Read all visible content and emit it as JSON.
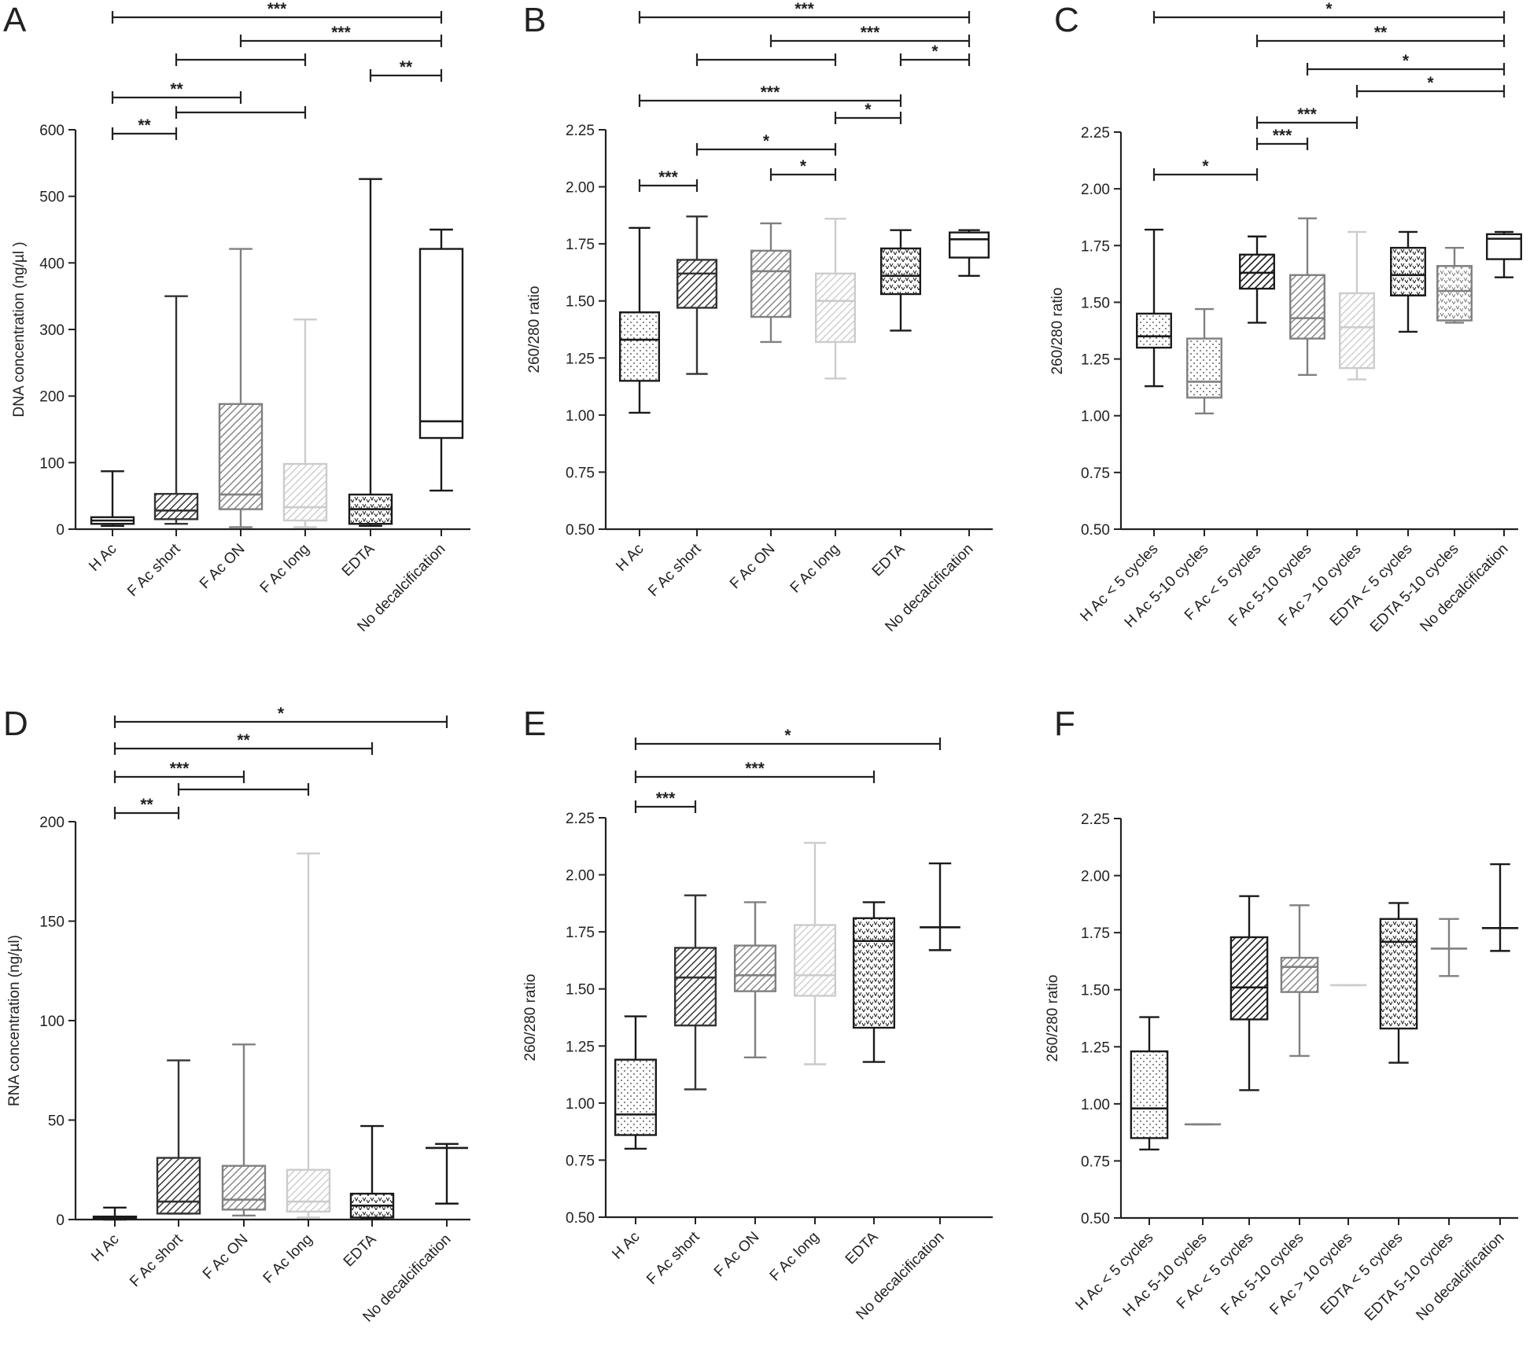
{
  "colors": {
    "black": "#1a1a1a",
    "dark": "#333333",
    "mid": "#808080",
    "light": "#cccccc",
    "axis": "#222222"
  },
  "chart_data": [
    {
      "panel": "A",
      "type": "box",
      "ylabel": "DNA concentration  (ng/µl )",
      "ylim": [
        0,
        600
      ],
      "yticks": [
        "0",
        "100",
        "200",
        "300",
        "400",
        "500",
        "600"
      ],
      "categories": [
        "H Ac",
        "F Ac short",
        "F Ac ON",
        "F Ac long",
        "EDTA",
        "No decalcification"
      ],
      "boxes": [
        {
          "min": 5,
          "q1": 8,
          "median": 13,
          "q3": 18,
          "max": 87,
          "color": "black",
          "pattern": "dots"
        },
        {
          "min": 8,
          "q1": 15,
          "median": 28,
          "q3": 53,
          "max": 350,
          "color": "dark",
          "pattern": "hatch"
        },
        {
          "min": 3,
          "q1": 30,
          "median": 52,
          "q3": 188,
          "max": 421,
          "color": "mid",
          "pattern": "hatch"
        },
        {
          "min": 3,
          "q1": 13,
          "median": 33,
          "q3": 98,
          "max": 315,
          "color": "light",
          "pattern": "hatch"
        },
        {
          "min": 5,
          "q1": 8,
          "median": 30,
          "q3": 52,
          "max": 526,
          "color": "black",
          "pattern": "vees"
        },
        {
          "min": 58,
          "q1": 137,
          "median": 162,
          "q3": 421,
          "max": 450,
          "color": "black",
          "pattern": "none"
        }
      ],
      "brackets": [
        {
          "from": 0,
          "to": 5,
          "label": "***",
          "row": 0
        },
        {
          "from": 2,
          "to": 5,
          "label": "***",
          "row": 1
        },
        {
          "from": 1,
          "to": 3,
          "label": "",
          "row": 2
        },
        {
          "from": 4,
          "to": 5,
          "label": "**",
          "row": 3
        },
        {
          "from": 0,
          "to": 2,
          "label": "**",
          "row": 4
        },
        {
          "from": 1,
          "to": 3,
          "label": "",
          "row": 5
        },
        {
          "from": 0,
          "to": 1,
          "label": "**",
          "row": 6
        }
      ]
    },
    {
      "panel": "B",
      "type": "box",
      "ylabel": "260/280 ratio",
      "ylim": [
        0.5,
        2.25
      ],
      "yticks": [
        "0.50",
        "0.75",
        "1.00",
        "1.25",
        "1.50",
        "1.75",
        "2.00",
        "2.25"
      ],
      "categories": [
        "H Ac",
        "F Ac short",
        "F Ac ON",
        "F Ac long",
        "EDTA",
        "No decalcification"
      ],
      "boxes": [
        {
          "min": 1.01,
          "q1": 1.15,
          "median": 1.33,
          "q3": 1.45,
          "max": 1.82,
          "color": "black",
          "pattern": "dots"
        },
        {
          "min": 1.18,
          "q1": 1.47,
          "median": 1.62,
          "q3": 1.68,
          "max": 1.87,
          "color": "dark",
          "pattern": "hatch"
        },
        {
          "min": 1.32,
          "q1": 1.43,
          "median": 1.63,
          "q3": 1.72,
          "max": 1.84,
          "color": "mid",
          "pattern": "hatch"
        },
        {
          "min": 1.16,
          "q1": 1.32,
          "median": 1.5,
          "q3": 1.62,
          "max": 1.86,
          "color": "light",
          "pattern": "hatch"
        },
        {
          "min": 1.37,
          "q1": 1.53,
          "median": 1.61,
          "q3": 1.73,
          "max": 1.81,
          "color": "black",
          "pattern": "vees"
        },
        {
          "min": 1.61,
          "q1": 1.69,
          "median": 1.77,
          "q3": 1.8,
          "max": 1.81,
          "color": "black",
          "pattern": "none"
        }
      ],
      "brackets": [
        {
          "from": 0,
          "to": 5,
          "label": "***",
          "row": 0
        },
        {
          "from": 2,
          "to": 5,
          "label": "***",
          "row": 1
        },
        {
          "from": 1,
          "to": 3,
          "label": "",
          "row": 2
        },
        {
          "from": 4,
          "to": 5,
          "label": "*",
          "row": 2
        },
        {
          "from": 0,
          "to": 4,
          "label": "***",
          "row": 3
        },
        {
          "from": 3,
          "to": 4,
          "label": "*",
          "row": 4
        },
        {
          "from": 1,
          "to": 3,
          "label": "*",
          "row": 5
        },
        {
          "from": 2,
          "to": 3,
          "label": "*",
          "row": 6
        },
        {
          "from": 0,
          "to": 1,
          "label": "***",
          "row": 7
        }
      ]
    },
    {
      "panel": "C",
      "type": "box",
      "ylabel": "260/280 ratio",
      "ylim": [
        0.5,
        2.25
      ],
      "yticks": [
        "0.50",
        "0.75",
        "1.00",
        "1.25",
        "1.50",
        "1.75",
        "2.00",
        "2.25"
      ],
      "categories": [
        "H Ac < 5 cycles",
        "H Ac 5-10 cycles",
        "F Ac < 5 cycles",
        "F Ac 5-10 cycles",
        "F Ac > 10 cycles",
        "EDTA < 5 cycles",
        "EDTA 5-10 cycles",
        "No decalcification"
      ],
      "boxes": [
        {
          "min": 1.13,
          "q1": 1.3,
          "median": 1.35,
          "q3": 1.45,
          "max": 1.82,
          "color": "black",
          "pattern": "dots"
        },
        {
          "min": 1.01,
          "q1": 1.08,
          "median": 1.15,
          "q3": 1.34,
          "max": 1.47,
          "color": "mid",
          "pattern": "dots"
        },
        {
          "min": 1.41,
          "q1": 1.56,
          "median": 1.63,
          "q3": 1.71,
          "max": 1.79,
          "color": "black",
          "pattern": "hatch"
        },
        {
          "min": 1.18,
          "q1": 1.34,
          "median": 1.43,
          "q3": 1.62,
          "max": 1.87,
          "color": "mid",
          "pattern": "hatch"
        },
        {
          "min": 1.16,
          "q1": 1.21,
          "median": 1.39,
          "q3": 1.54,
          "max": 1.81,
          "color": "light",
          "pattern": "hatch"
        },
        {
          "min": 1.37,
          "q1": 1.53,
          "median": 1.62,
          "q3": 1.74,
          "max": 1.81,
          "color": "black",
          "pattern": "vees"
        },
        {
          "min": 1.41,
          "q1": 1.42,
          "median": 1.55,
          "q3": 1.66,
          "max": 1.74,
          "color": "mid",
          "pattern": "vees"
        },
        {
          "min": 1.61,
          "q1": 1.69,
          "median": 1.78,
          "q3": 1.8,
          "max": 1.81,
          "color": "black",
          "pattern": "none"
        }
      ],
      "brackets": [
        {
          "from": 0,
          "to": 7,
          "label": "*",
          "row": 0
        },
        {
          "from": 2,
          "to": 7,
          "label": "**",
          "row": 1
        },
        {
          "from": 3,
          "to": 7,
          "label": "*",
          "row": 2
        },
        {
          "from": 4,
          "to": 7,
          "label": "*",
          "row": 3
        },
        {
          "from": 2,
          "to": 4,
          "label": "***",
          "row": 4
        },
        {
          "from": 2,
          "to": 3,
          "label": "***",
          "row": 5
        },
        {
          "from": 0,
          "to": 2,
          "label": "*",
          "row": 6
        }
      ]
    },
    {
      "panel": "D",
      "type": "box",
      "ylabel": "RNA concentration (ng/µl)",
      "ylim": [
        0,
        200
      ],
      "yticks": [
        "0",
        "50",
        "100",
        "150",
        "200"
      ],
      "categories": [
        "H Ac",
        "F Ac short",
        "F Ac ON",
        "F Ac long",
        "EDTA",
        "No decalcification"
      ],
      "boxes": [
        {
          "min": 0,
          "q1": 0.3,
          "median": 0.8,
          "q3": 1.5,
          "max": 6,
          "color": "black",
          "pattern": "dots"
        },
        {
          "min": 3,
          "q1": 3,
          "median": 9,
          "q3": 31,
          "max": 80,
          "color": "dark",
          "pattern": "hatch"
        },
        {
          "min": 2,
          "q1": 5,
          "median": 10,
          "q3": 27,
          "max": 88,
          "color": "mid",
          "pattern": "hatch"
        },
        {
          "min": 1,
          "q1": 4,
          "median": 9,
          "q3": 25,
          "max": 184,
          "color": "light",
          "pattern": "hatch"
        },
        {
          "min": 0.5,
          "q1": 1,
          "median": 7,
          "q3": 13,
          "max": 47,
          "color": "black",
          "pattern": "vees"
        },
        {
          "min": 8,
          "q1": 36,
          "median": 36,
          "q3": 36,
          "max": 38,
          "color": "black",
          "pattern": "none"
        }
      ],
      "brackets": [
        {
          "from": 0,
          "to": 5,
          "label": "*",
          "row": 0
        },
        {
          "from": 0,
          "to": 4,
          "label": "**",
          "row": 1
        },
        {
          "from": 0,
          "to": 2,
          "label": "***",
          "row": 2
        },
        {
          "from": 1,
          "to": 3,
          "label": "",
          "row": 3
        },
        {
          "from": 0,
          "to": 1,
          "label": "**",
          "row": 4
        }
      ]
    },
    {
      "panel": "E",
      "type": "box",
      "ylabel": "260/280 ratio",
      "ylim": [
        0.5,
        2.25
      ],
      "yticks": [
        "0.50",
        "0.75",
        "1.00",
        "1.25",
        "1.50",
        "1.75",
        "2.00",
        "2.25"
      ],
      "categories": [
        "H Ac",
        "F Ac short",
        "F Ac ON",
        "F Ac long",
        "EDTA",
        "No decalcification"
      ],
      "boxes": [
        {
          "min": 0.8,
          "q1": 0.86,
          "median": 0.95,
          "q3": 1.19,
          "max": 1.38,
          "color": "black",
          "pattern": "dots"
        },
        {
          "min": 1.06,
          "q1": 1.34,
          "median": 1.55,
          "q3": 1.68,
          "max": 1.91,
          "color": "dark",
          "pattern": "hatch"
        },
        {
          "min": 1.2,
          "q1": 1.49,
          "median": 1.56,
          "q3": 1.69,
          "max": 1.88,
          "color": "mid",
          "pattern": "hatch"
        },
        {
          "min": 1.17,
          "q1": 1.47,
          "median": 1.56,
          "q3": 1.78,
          "max": 2.14,
          "color": "light",
          "pattern": "hatch"
        },
        {
          "min": 1.18,
          "q1": 1.33,
          "median": 1.71,
          "q3": 1.81,
          "max": 1.88,
          "color": "black",
          "pattern": "vees"
        },
        {
          "min": 1.67,
          "q1": 1.77,
          "median": 1.77,
          "q3": 1.77,
          "max": 2.05,
          "color": "black",
          "pattern": "none"
        }
      ],
      "brackets": [
        {
          "from": 0,
          "to": 5,
          "label": "*",
          "row": 0
        },
        {
          "from": 0,
          "to": 4,
          "label": "***",
          "row": 1
        },
        {
          "from": 0,
          "to": 1,
          "label": "***",
          "row": 2
        }
      ]
    },
    {
      "panel": "F",
      "type": "box",
      "ylabel": "260/280 ratio",
      "ylim": [
        0.5,
        2.25
      ],
      "yticks": [
        "0.50",
        "0.75",
        "1.00",
        "1.25",
        "1.50",
        "1.75",
        "2.00",
        "2.25"
      ],
      "categories": [
        "H Ac < 5 cycles",
        "H Ac 5-10 cycles",
        "F Ac < 5 cycles",
        "F Ac 5-10 cycles",
        "F Ac > 10 cycles",
        "EDTA < 5 cycles",
        "EDTA 5-10 cycles",
        "No decalcification"
      ],
      "boxes": [
        {
          "min": 0.8,
          "q1": 0.85,
          "median": 0.98,
          "q3": 1.23,
          "max": 1.38,
          "color": "black",
          "pattern": "dots"
        },
        {
          "min": 0.91,
          "q1": 0.91,
          "median": 0.91,
          "q3": 0.91,
          "max": 0.91,
          "color": "mid",
          "pattern": "none"
        },
        {
          "min": 1.06,
          "q1": 1.37,
          "median": 1.51,
          "q3": 1.73,
          "max": 1.91,
          "color": "black",
          "pattern": "hatch"
        },
        {
          "min": 1.21,
          "q1": 1.49,
          "median": 1.6,
          "q3": 1.64,
          "max": 1.87,
          "color": "mid",
          "pattern": "hatch"
        },
        {
          "min": 1.52,
          "q1": 1.52,
          "median": 1.52,
          "q3": 1.52,
          "max": 1.52,
          "color": "light",
          "pattern": "none"
        },
        {
          "min": 1.18,
          "q1": 1.33,
          "median": 1.71,
          "q3": 1.81,
          "max": 1.88,
          "color": "black",
          "pattern": "vees"
        },
        {
          "min": 1.56,
          "q1": 1.68,
          "median": 1.68,
          "q3": 1.68,
          "max": 1.81,
          "color": "mid",
          "pattern": "none"
        },
        {
          "min": 1.67,
          "q1": 1.77,
          "median": 1.77,
          "q3": 1.77,
          "max": 2.05,
          "color": "black",
          "pattern": "none"
        }
      ],
      "brackets": []
    }
  ]
}
